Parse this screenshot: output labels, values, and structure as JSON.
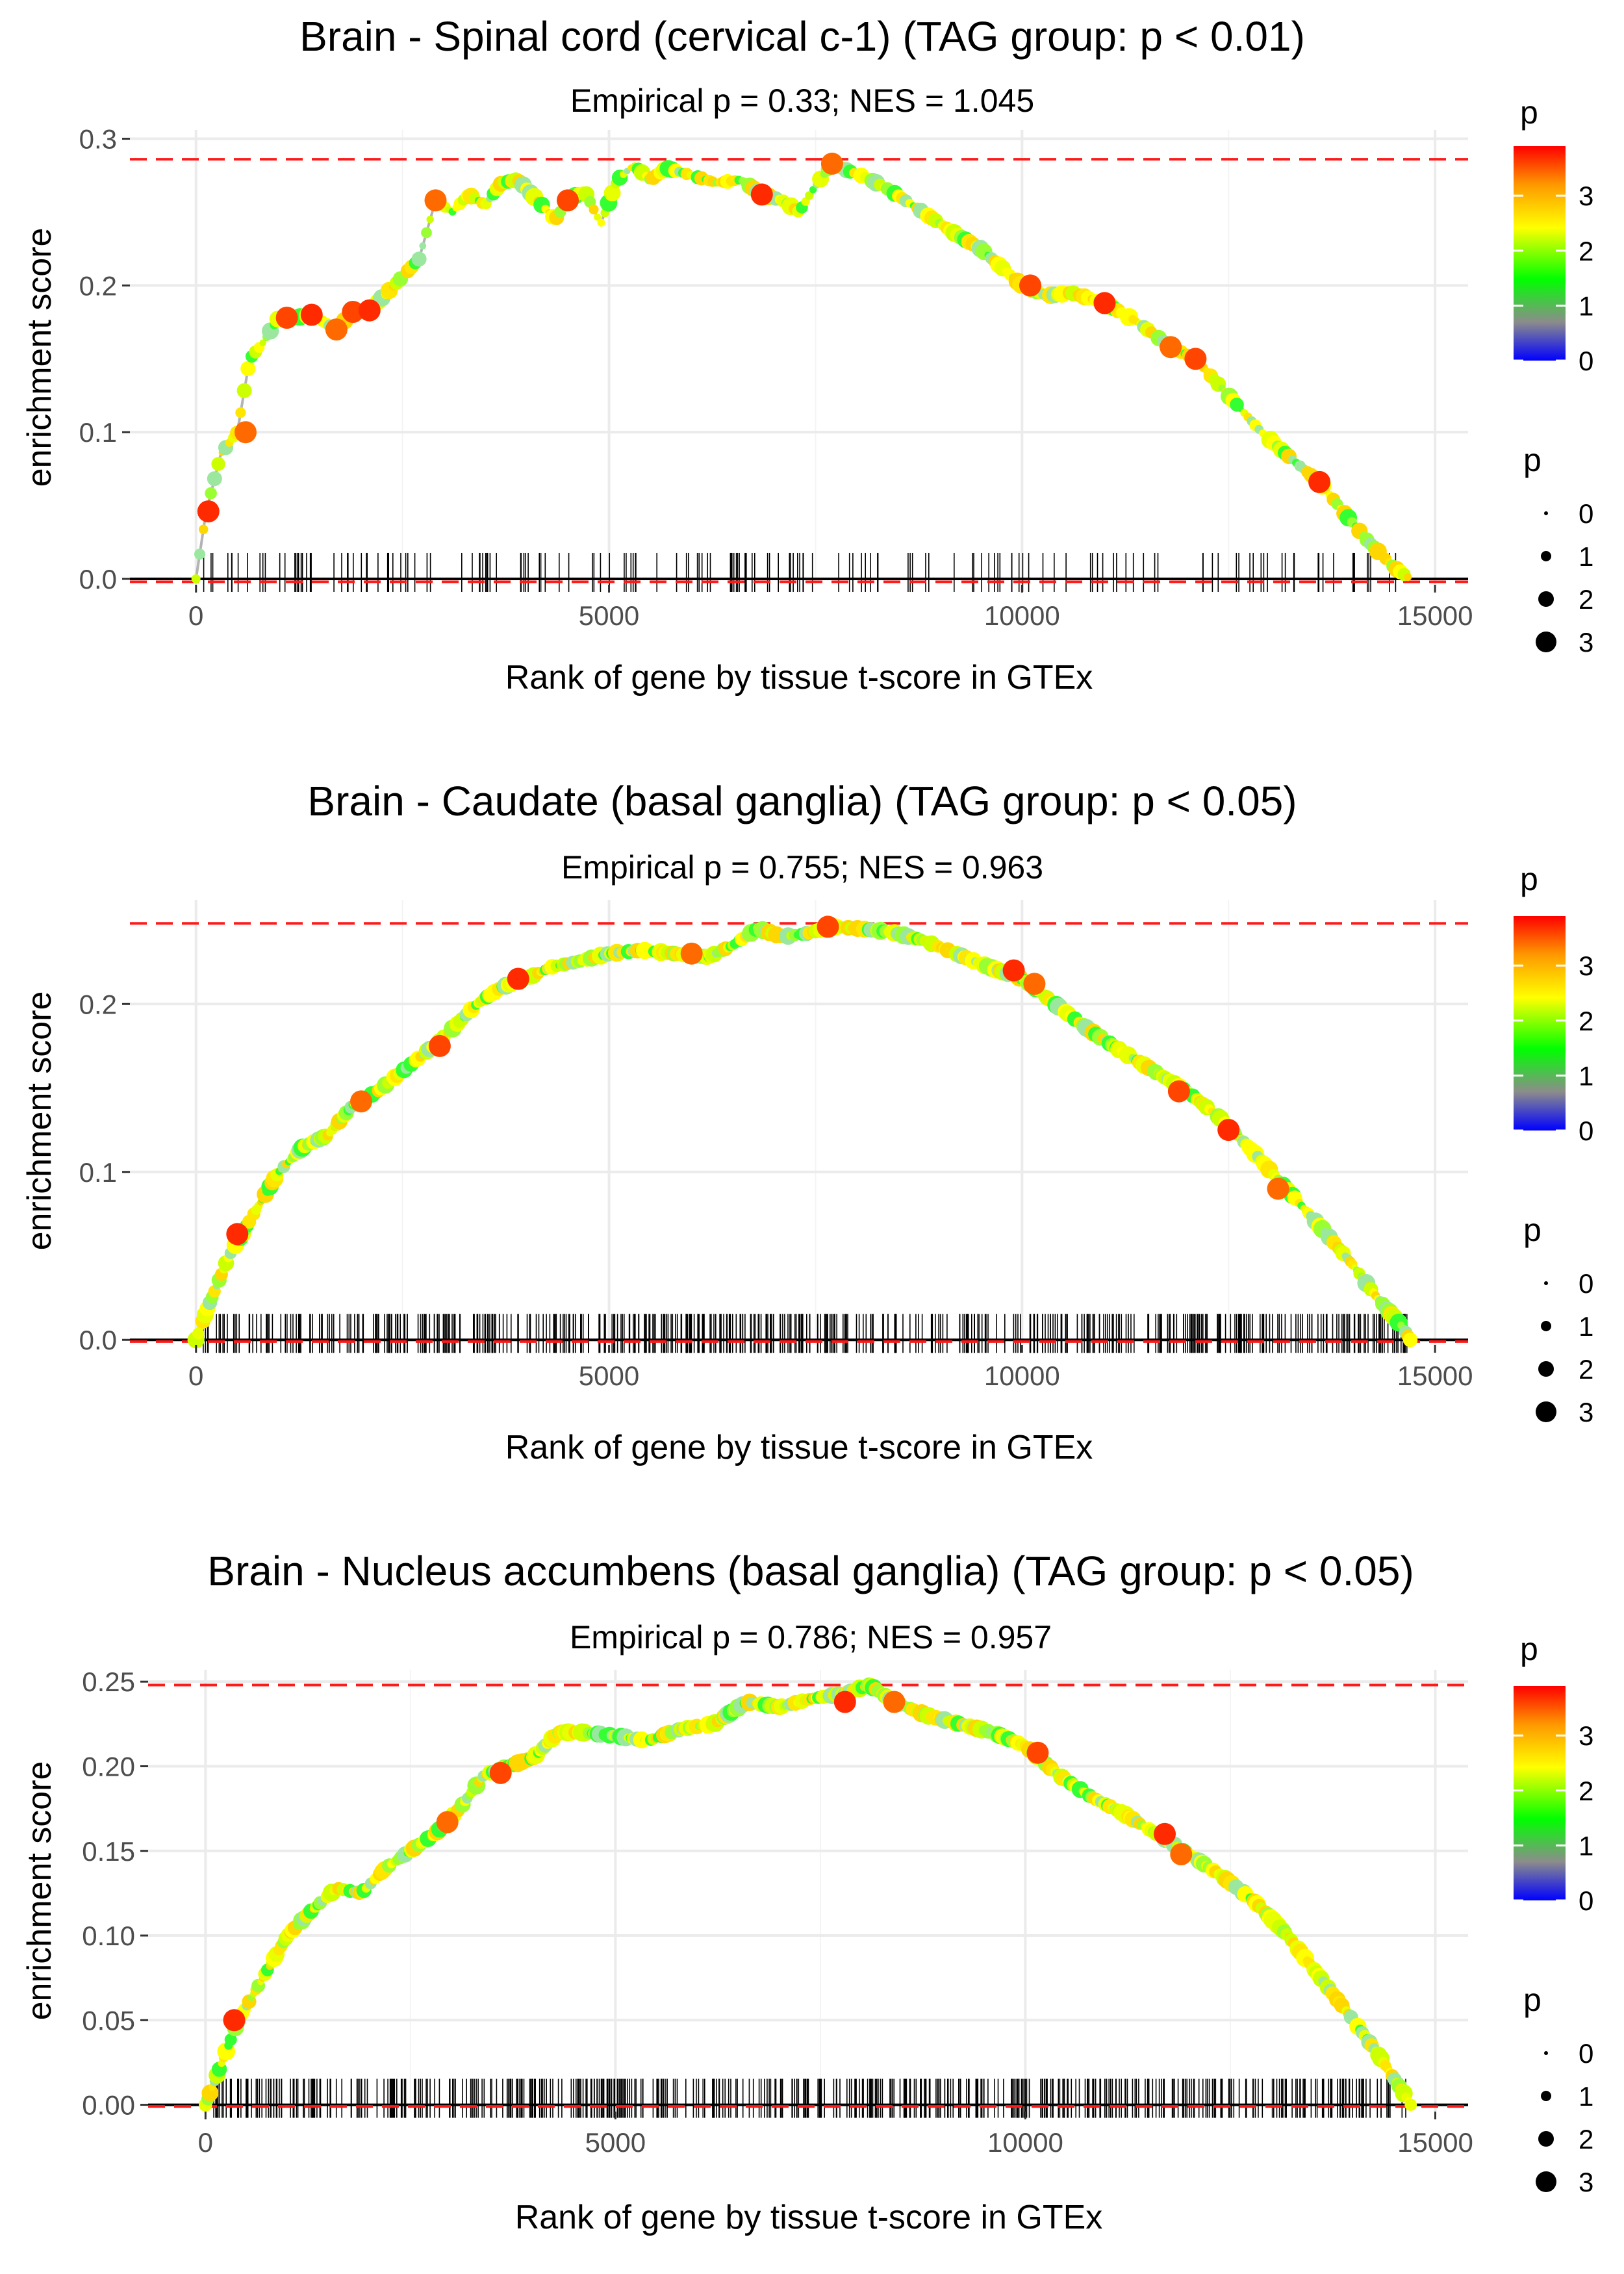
{
  "chart_data": [
    {
      "type": "line",
      "title": "Brain - Spinal cord (cervical c-1) (TAG group: p < 0.01)",
      "subtitle": "Empirical p = 0.33; NES = 1.045",
      "xlabel": "Rank of gene by tissue t-score in GTEx",
      "ylabel": "enrichment score",
      "xlim": [
        -800,
        15400
      ],
      "ylim": [
        -0.004,
        0.306
      ],
      "xticks": [
        0,
        5000,
        10000,
        15000
      ],
      "xtick_labels": [
        "0",
        "5000",
        "10000",
        "15000"
      ],
      "yticks": [
        0,
        0.1,
        0.2,
        0.3
      ],
      "ytick_labels": [
        "0.0",
        "0.1",
        "0.2",
        "0.3"
      ],
      "max_es_line": 0.286,
      "min_es_line": -0.002,
      "n_hits": 170,
      "hit_end": 14700,
      "curve": [
        [
          0,
          0
        ],
        [
          120,
          0.045
        ],
        [
          300,
          0.085
        ],
        [
          500,
          0.1
        ],
        [
          650,
          0.15
        ],
        [
          800,
          0.16
        ],
        [
          1000,
          0.178
        ],
        [
          1200,
          0.178
        ],
        [
          1400,
          0.18
        ],
        [
          1700,
          0.17
        ],
        [
          1900,
          0.182
        ],
        [
          2100,
          0.183
        ],
        [
          2400,
          0.2
        ],
        [
          2700,
          0.218
        ],
        [
          2900,
          0.258
        ],
        [
          3100,
          0.25
        ],
        [
          3300,
          0.262
        ],
        [
          3500,
          0.255
        ],
        [
          3700,
          0.27
        ],
        [
          3900,
          0.272
        ],
        [
          4100,
          0.26
        ],
        [
          4350,
          0.245
        ],
        [
          4500,
          0.258
        ],
        [
          4700,
          0.265
        ],
        [
          4900,
          0.242
        ],
        [
          5100,
          0.272
        ],
        [
          5300,
          0.282
        ],
        [
          5500,
          0.272
        ],
        [
          5700,
          0.28
        ],
        [
          6000,
          0.275
        ],
        [
          6300,
          0.27
        ],
        [
          6600,
          0.272
        ],
        [
          6850,
          0.262
        ],
        [
          7100,
          0.258
        ],
        [
          7300,
          0.25
        ],
        [
          7500,
          0.268
        ],
        [
          7700,
          0.283
        ],
        [
          7900,
          0.278
        ],
        [
          8100,
          0.274
        ],
        [
          8400,
          0.265
        ],
        [
          8800,
          0.25
        ],
        [
          9200,
          0.235
        ],
        [
          9500,
          0.225
        ],
        [
          9800,
          0.21
        ],
        [
          10000,
          0.2
        ],
        [
          10300,
          0.193
        ],
        [
          10600,
          0.195
        ],
        [
          11000,
          0.188
        ],
        [
          11400,
          0.175
        ],
        [
          11800,
          0.158
        ],
        [
          12100,
          0.15
        ],
        [
          12500,
          0.125
        ],
        [
          12900,
          0.1
        ],
        [
          13300,
          0.08
        ],
        [
          13600,
          0.066
        ],
        [
          13900,
          0.045
        ],
        [
          14200,
          0.025
        ],
        [
          14500,
          0.008
        ],
        [
          14700,
          0
        ]
      ],
      "highlight_points": [
        [
          150,
          0.046
        ],
        [
          600,
          0.1
        ],
        [
          1100,
          0.178
        ],
        [
          1400,
          0.18
        ],
        [
          1700,
          0.17
        ],
        [
          1900,
          0.182
        ],
        [
          2100,
          0.183
        ],
        [
          2900,
          0.258
        ],
        [
          4500,
          0.258
        ],
        [
          6850,
          0.262
        ],
        [
          7700,
          0.283
        ],
        [
          10100,
          0.2
        ],
        [
          11000,
          0.188
        ],
        [
          11800,
          0.158
        ],
        [
          12100,
          0.15
        ],
        [
          13600,
          0.066
        ]
      ],
      "legend": {
        "color_title": "p",
        "color_labels": [
          "3",
          "2",
          "1",
          "0"
        ],
        "size_title": "p",
        "size_labels": [
          "0",
          "1",
          "2",
          "3"
        ]
      }
    },
    {
      "type": "line",
      "title": "Brain - Caudate (basal ganglia) (TAG group: p < 0.05)",
      "subtitle": "Empirical p = 0.755; NES = 0.963",
      "xlabel": "Rank of gene by tissue t-score in GTEx",
      "ylabel": "enrichment score",
      "xlim": [
        -800,
        15400
      ],
      "ylim": [
        -0.003,
        0.262
      ],
      "xticks": [
        0,
        5000,
        10000,
        15000
      ],
      "xtick_labels": [
        "0",
        "5000",
        "10000",
        "15000"
      ],
      "yticks": [
        0,
        0.1,
        0.2
      ],
      "ytick_labels": [
        "0.0",
        "0.1",
        "0.2"
      ],
      "max_es_line": 0.248,
      "min_es_line": -0.001,
      "n_hits": 520,
      "hit_end": 14700,
      "curve": [
        [
          0,
          0
        ],
        [
          150,
          0.02
        ],
        [
          400,
          0.05
        ],
        [
          700,
          0.075
        ],
        [
          1000,
          0.1
        ],
        [
          1300,
          0.115
        ],
        [
          1600,
          0.122
        ],
        [
          1900,
          0.14
        ],
        [
          2200,
          0.148
        ],
        [
          2500,
          0.16
        ],
        [
          2800,
          0.172
        ],
        [
          3100,
          0.185
        ],
        [
          3400,
          0.2
        ],
        [
          3700,
          0.21
        ],
        [
          4000,
          0.215
        ],
        [
          4300,
          0.222
        ],
        [
          4600,
          0.225
        ],
        [
          5000,
          0.23
        ],
        [
          5400,
          0.232
        ],
        [
          5800,
          0.23
        ],
        [
          6200,
          0.228
        ],
        [
          6500,
          0.235
        ],
        [
          6800,
          0.245
        ],
        [
          7100,
          0.24
        ],
        [
          7400,
          0.242
        ],
        [
          7700,
          0.246
        ],
        [
          8000,
          0.245
        ],
        [
          8400,
          0.243
        ],
        [
          8800,
          0.238
        ],
        [
          9200,
          0.23
        ],
        [
          9600,
          0.222
        ],
        [
          10000,
          0.215
        ],
        [
          10400,
          0.2
        ],
        [
          10800,
          0.185
        ],
        [
          11200,
          0.172
        ],
        [
          11600,
          0.16
        ],
        [
          12000,
          0.148
        ],
        [
          12400,
          0.132
        ],
        [
          12800,
          0.112
        ],
        [
          13200,
          0.09
        ],
        [
          13600,
          0.068
        ],
        [
          14000,
          0.045
        ],
        [
          14300,
          0.025
        ],
        [
          14600,
          0.008
        ],
        [
          14700,
          0
        ]
      ],
      "highlight_points": [
        [
          500,
          0.063
        ],
        [
          2000,
          0.142
        ],
        [
          2950,
          0.175
        ],
        [
          3900,
          0.215
        ],
        [
          6000,
          0.23
        ],
        [
          7650,
          0.246
        ],
        [
          9900,
          0.22
        ],
        [
          10150,
          0.212
        ],
        [
          11900,
          0.148
        ],
        [
          12500,
          0.125
        ],
        [
          13100,
          0.09
        ]
      ],
      "legend": {
        "color_title": "p",
        "color_labels": [
          "3",
          "2",
          "1",
          "0"
        ],
        "size_title": "p",
        "size_labels": [
          "0",
          "1",
          "2",
          "3"
        ]
      }
    },
    {
      "type": "line",
      "title": "Brain - Nucleus accumbens (basal ganglia) (TAG group: p < 0.05)",
      "subtitle": "Empirical p = 0.786; NES = 0.957",
      "xlabel": "Rank of gene by tissue t-score in GTEx",
      "ylabel": "enrichment score",
      "xlim": [
        -700,
        15400
      ],
      "ylim": [
        -0.004,
        0.257
      ],
      "xticks": [
        0,
        5000,
        10000,
        15000
      ],
      "xtick_labels": [
        "0",
        "5000",
        "10000",
        "15000"
      ],
      "yticks": [
        0,
        0.05,
        0.1,
        0.15,
        0.2,
        0.25
      ],
      "ytick_labels": [
        "0.00",
        "0.05",
        "0.10",
        "0.15",
        "0.20",
        "0.25"
      ],
      "max_es_line": 0.248,
      "min_es_line": -0.001,
      "n_hits": 520,
      "hit_end": 14700,
      "curve": [
        [
          0,
          0
        ],
        [
          200,
          0.025
        ],
        [
          400,
          0.05
        ],
        [
          700,
          0.075
        ],
        [
          1000,
          0.1
        ],
        [
          1300,
          0.115
        ],
        [
          1600,
          0.128
        ],
        [
          1900,
          0.125
        ],
        [
          2200,
          0.14
        ],
        [
          2500,
          0.15
        ],
        [
          2800,
          0.16
        ],
        [
          3100,
          0.175
        ],
        [
          3400,
          0.195
        ],
        [
          3700,
          0.2
        ],
        [
          4000,
          0.205
        ],
        [
          4300,
          0.22
        ],
        [
          4600,
          0.22
        ],
        [
          5000,
          0.218
        ],
        [
          5400,
          0.215
        ],
        [
          5800,
          0.222
        ],
        [
          6200,
          0.225
        ],
        [
          6600,
          0.238
        ],
        [
          7000,
          0.235
        ],
        [
          7400,
          0.24
        ],
        [
          7800,
          0.243
        ],
        [
          8100,
          0.248
        ],
        [
          8400,
          0.238
        ],
        [
          8800,
          0.23
        ],
        [
          9200,
          0.225
        ],
        [
          9600,
          0.22
        ],
        [
          10000,
          0.212
        ],
        [
          10400,
          0.195
        ],
        [
          10800,
          0.182
        ],
        [
          11200,
          0.172
        ],
        [
          11600,
          0.16
        ],
        [
          12000,
          0.148
        ],
        [
          12400,
          0.135
        ],
        [
          12800,
          0.12
        ],
        [
          13200,
          0.1
        ],
        [
          13600,
          0.075
        ],
        [
          14000,
          0.05
        ],
        [
          14300,
          0.03
        ],
        [
          14600,
          0.008
        ],
        [
          14700,
          0
        ]
      ],
      "highlight_points": [
        [
          350,
          0.05
        ],
        [
          2950,
          0.167
        ],
        [
          3600,
          0.196
        ],
        [
          7800,
          0.238
        ],
        [
          8400,
          0.238
        ],
        [
          10150,
          0.208
        ],
        [
          11700,
          0.16
        ],
        [
          11900,
          0.148
        ]
      ],
      "legend": {
        "color_title": "p",
        "color_labels": [
          "3",
          "2",
          "1",
          "0"
        ],
        "size_title": "p",
        "size_labels": [
          "0",
          "1",
          "2",
          "3"
        ]
      }
    }
  ],
  "colors": {
    "threshold_line": "#ff1a1a",
    "curve_line": "#b3b3b3",
    "grid": "#ebebeb",
    "zero_line": "#000000",
    "highlight_dot": "#ff3a00",
    "gradient_stops": [
      "#ff0000",
      "#ff9900",
      "#ffff00",
      "#00ff00",
      "#8c8c8c",
      "#0000ff"
    ]
  }
}
